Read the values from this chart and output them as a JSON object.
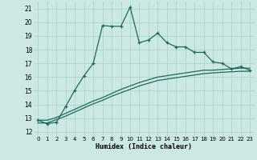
{
  "xlabel": "Humidex (Indice chaleur)",
  "bg_color": "#cce8e4",
  "line_color": "#1a6b5e",
  "grid_color": "#aacfcc",
  "xlim": [
    -0.5,
    23.5
  ],
  "ylim": [
    11.7,
    21.5
  ],
  "yticks": [
    12,
    13,
    14,
    15,
    16,
    17,
    18,
    19,
    20,
    21
  ],
  "xticks": [
    0,
    1,
    2,
    3,
    4,
    5,
    6,
    7,
    8,
    9,
    10,
    11,
    12,
    13,
    14,
    15,
    16,
    17,
    18,
    19,
    20,
    21,
    22,
    23
  ],
  "line1_x": [
    0,
    1,
    2,
    3,
    4,
    5,
    6,
    7,
    8,
    9,
    10,
    11,
    12,
    13,
    14,
    15,
    16,
    17,
    18,
    19,
    20,
    21,
    22,
    23
  ],
  "line1_y": [
    12.85,
    12.6,
    12.7,
    13.85,
    15.05,
    16.1,
    17.0,
    19.75,
    19.7,
    19.7,
    21.1,
    18.5,
    18.7,
    19.2,
    18.5,
    18.2,
    18.2,
    17.8,
    17.8,
    17.1,
    17.0,
    16.6,
    16.75,
    16.5
  ],
  "line2_x": [
    0,
    1,
    2,
    3,
    4,
    5,
    6,
    7,
    8,
    9,
    10,
    11,
    12,
    13,
    14,
    15,
    16,
    17,
    18,
    19,
    20,
    21,
    22,
    23
  ],
  "line2_y": [
    12.85,
    12.85,
    13.05,
    13.35,
    13.65,
    13.95,
    14.25,
    14.5,
    14.8,
    15.1,
    15.35,
    15.6,
    15.8,
    16.0,
    16.1,
    16.2,
    16.3,
    16.4,
    16.5,
    16.5,
    16.55,
    16.6,
    16.65,
    16.65
  ],
  "line3_x": [
    0,
    1,
    2,
    3,
    4,
    5,
    6,
    7,
    8,
    9,
    10,
    11,
    12,
    13,
    14,
    15,
    16,
    17,
    18,
    19,
    20,
    21,
    22,
    23
  ],
  "line3_y": [
    12.65,
    12.65,
    12.9,
    13.15,
    13.45,
    13.75,
    14.05,
    14.3,
    14.6,
    14.85,
    15.1,
    15.35,
    15.55,
    15.75,
    15.85,
    15.95,
    16.05,
    16.15,
    16.25,
    16.3,
    16.35,
    16.38,
    16.42,
    16.42
  ]
}
